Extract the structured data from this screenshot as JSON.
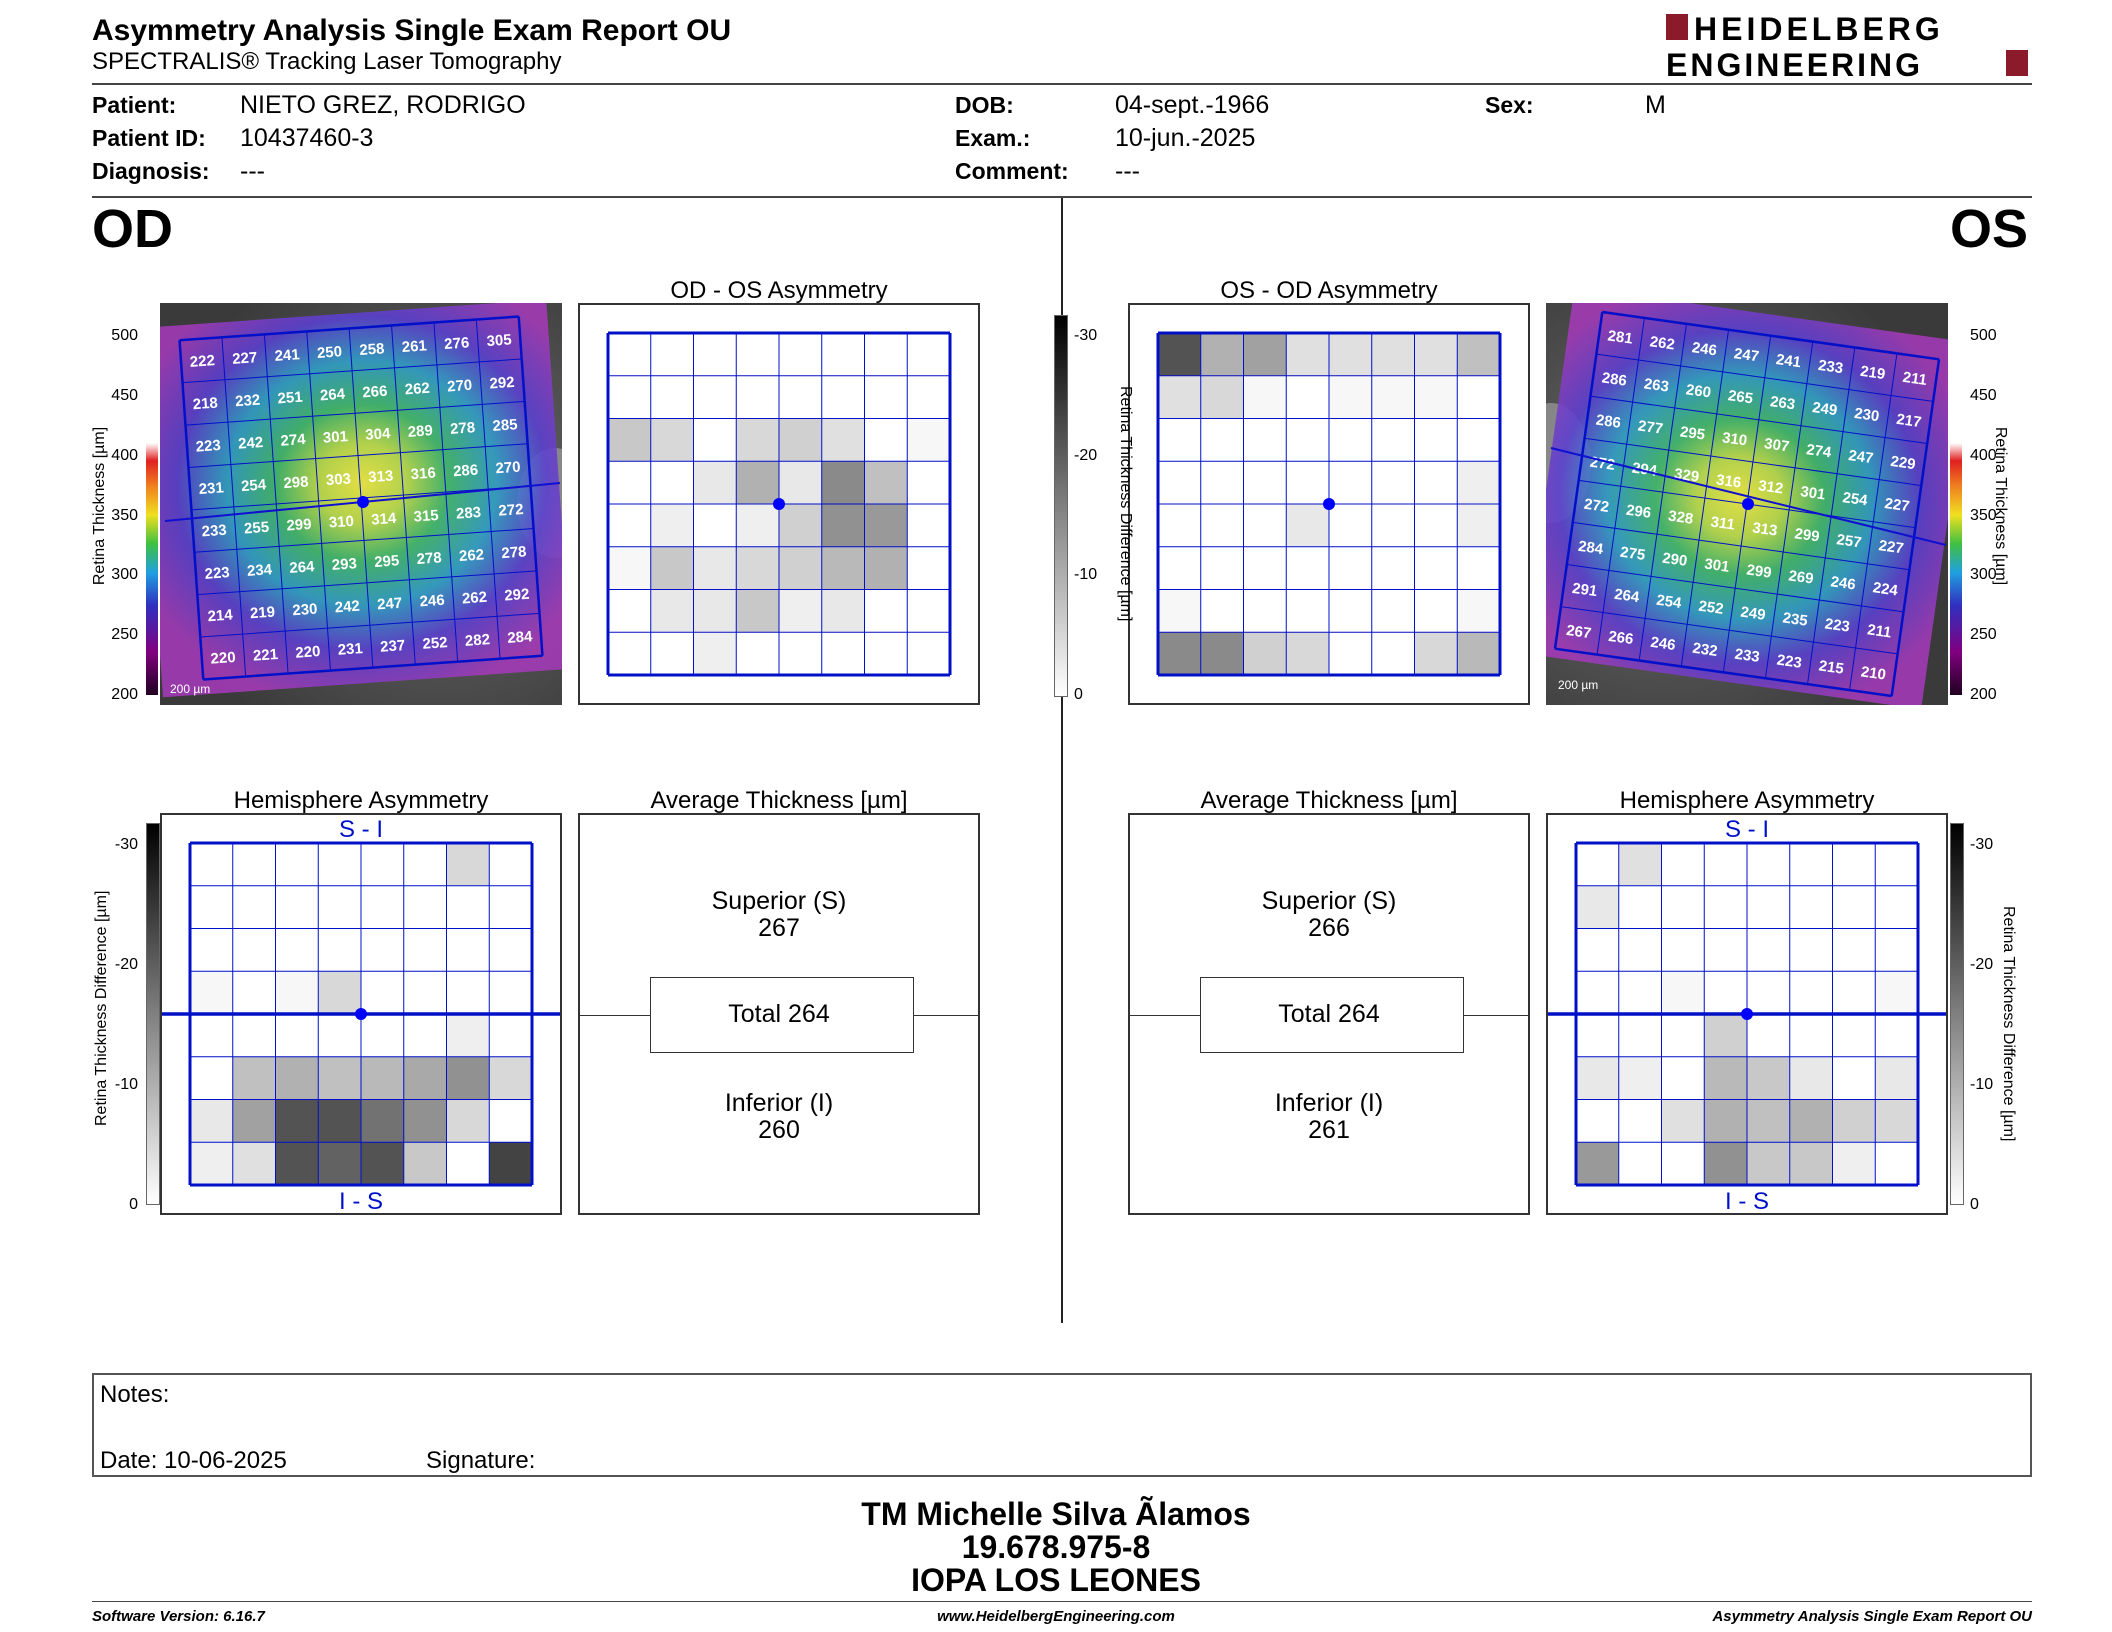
{
  "header": {
    "title": "Asymmetry Analysis Single Exam Report OU",
    "subtitle": "SPECTRALIS® Tracking Laser Tomography",
    "logo_line1": "HEIDELBERG",
    "logo_line2": "ENGINEERING",
    "brand_color": "#8b1a2b"
  },
  "patient": {
    "patient_label": "Patient:",
    "patient_value": "NIETO GREZ, RODRIGO",
    "id_label": "Patient ID:",
    "id_value": "10437460-3",
    "diagnosis_label": "Diagnosis:",
    "diagnosis_value": "---",
    "dob_label": "DOB:",
    "dob_value": "04-sept.-1966",
    "exam_label": "Exam.:",
    "exam_value": "10-jun.-2025",
    "comment_label": "Comment:",
    "comment_value": "---",
    "sex_label": "Sex:",
    "sex_value": "M"
  },
  "od": {
    "eye_label": "OD",
    "asym_title": "OD - OS Asymmetry",
    "hemi_title": "Hemisphere Asymmetry",
    "avg_title": "Average Thickness [µm]",
    "superior_label": "Superior (S)",
    "superior_value": "267",
    "total_label": "Total 264",
    "inferior_label": "Inferior (I)",
    "inferior_value": "260",
    "hemi_top": "S - I",
    "hemi_bottom": "I - S",
    "scale_label": "200 µm",
    "thickness_grid": [
      [
        222,
        227,
        241,
        250,
        258,
        261,
        276,
        305
      ],
      [
        218,
        232,
        251,
        264,
        266,
        262,
        270,
        292
      ],
      [
        223,
        242,
        274,
        301,
        304,
        289,
        278,
        285
      ],
      [
        231,
        254,
        298,
        303,
        313,
        316,
        286,
        270
      ],
      [
        233,
        255,
        299,
        310,
        314,
        315,
        283,
        272
      ],
      [
        223,
        234,
        264,
        293,
        295,
        278,
        262,
        278
      ],
      [
        214,
        219,
        230,
        242,
        247,
        246,
        262,
        292
      ],
      [
        220,
        221,
        220,
        231,
        237,
        252,
        282,
        284
      ]
    ],
    "asym_grid": [
      [
        0,
        0,
        0,
        0,
        0,
        0,
        0,
        0
      ],
      [
        0,
        0,
        0,
        0,
        0,
        0,
        0,
        0
      ],
      [
        7,
        5,
        0,
        5,
        6,
        4,
        0,
        1
      ],
      [
        0,
        0,
        3,
        10,
        3,
        15,
        8,
        0
      ],
      [
        0,
        2,
        0,
        2,
        6,
        14,
        13,
        0
      ],
      [
        1,
        7,
        3,
        5,
        6,
        9,
        10,
        0
      ],
      [
        0,
        3,
        3,
        7,
        2,
        3,
        0,
        0
      ],
      [
        0,
        0,
        2,
        0,
        0,
        0,
        0,
        0
      ]
    ],
    "hemi_grid": [
      [
        0,
        0,
        0,
        0,
        0,
        0,
        5,
        0
      ],
      [
        0,
        0,
        0,
        0,
        0,
        0,
        0,
        0
      ],
      [
        0,
        0,
        0,
        0,
        0,
        0,
        0,
        0
      ],
      [
        1,
        0,
        1,
        5,
        0,
        0,
        0,
        0
      ],
      [
        0,
        0,
        0,
        0,
        0,
        0,
        2,
        0
      ],
      [
        0,
        8,
        10,
        8,
        9,
        11,
        14,
        5
      ],
      [
        3,
        12,
        22,
        22,
        18,
        14,
        5,
        0
      ],
      [
        2,
        4,
        22,
        20,
        22,
        7,
        0,
        24
      ]
    ]
  },
  "os": {
    "eye_label": "OS",
    "asym_title": "OS - OD Asymmetry",
    "hemi_title": "Hemisphere Asymmetry",
    "avg_title": "Average Thickness [µm]",
    "superior_label": "Superior (S)",
    "superior_value": "266",
    "total_label": "Total 264",
    "inferior_label": "Inferior (I)",
    "inferior_value": "261",
    "hemi_top": "S - I",
    "hemi_bottom": "I - S",
    "scale_label": "200 µm",
    "thickness_grid": [
      [
        281,
        262,
        246,
        247,
        241,
        233,
        219,
        211
      ],
      [
        286,
        263,
        260,
        265,
        263,
        249,
        230,
        217
      ],
      [
        286,
        277,
        295,
        310,
        307,
        274,
        247,
        229
      ],
      [
        272,
        294,
        329,
        316,
        312,
        301,
        254,
        227
      ],
      [
        272,
        296,
        328,
        311,
        313,
        299,
        257,
        227
      ],
      [
        284,
        275,
        290,
        301,
        299,
        269,
        246,
        224
      ],
      [
        291,
        264,
        254,
        252,
        249,
        235,
        223,
        211
      ],
      [
        267,
        266,
        246,
        232,
        233,
        223,
        215,
        210
      ]
    ],
    "asym_grid": [
      [
        22,
        10,
        12,
        4,
        4,
        4,
        4,
        8
      ],
      [
        4,
        5,
        1,
        0,
        1,
        1,
        1,
        0
      ],
      [
        0,
        0,
        0,
        0,
        0,
        0,
        0,
        0
      ],
      [
        0,
        0,
        0,
        0,
        0,
        0,
        0,
        2
      ],
      [
        0,
        0,
        0,
        3,
        0,
        0,
        0,
        2
      ],
      [
        0,
        0,
        0,
        0,
        0,
        0,
        0,
        0
      ],
      [
        1,
        0,
        0,
        0,
        0,
        0,
        0,
        1
      ],
      [
        15,
        15,
        6,
        5,
        0,
        0,
        5,
        9
      ]
    ],
    "hemi_grid": [
      [
        0,
        4,
        0,
        0,
        0,
        0,
        0,
        0
      ],
      [
        3,
        0,
        0,
        0,
        0,
        0,
        0,
        0
      ],
      [
        0,
        0,
        0,
        0,
        0,
        0,
        0,
        0
      ],
      [
        0,
        0,
        1,
        0,
        0,
        0,
        0,
        1
      ],
      [
        0,
        0,
        0,
        6,
        0,
        0,
        0,
        0
      ],
      [
        3,
        2,
        0,
        9,
        7,
        3,
        0,
        3
      ],
      [
        0,
        0,
        4,
        10,
        8,
        10,
        6,
        5
      ],
      [
        13,
        0,
        0,
        14,
        7,
        7,
        2,
        0
      ]
    ]
  },
  "axes": {
    "thickness_ticks": [
      "500",
      "450",
      "400",
      "350",
      "300",
      "250",
      "200"
    ],
    "thickness_axis_label": "Retina  Thickness [µm]",
    "diff_ticks": [
      "-30",
      "-20",
      "-10",
      "0"
    ],
    "diff_axis_label": "Retina Thickness Difference [µm]"
  },
  "notes": {
    "notes_label": "Notes:",
    "date_label": "Date: 10-06-2025",
    "signature_label": "Signature:"
  },
  "signer": {
    "name": "TM Michelle Silva Ãlamos",
    "rut": "19.678.975-8",
    "place": "IOPA LOS LEONES"
  },
  "footer": {
    "version": "Software Version: 6.16.7",
    "website": "www.HeidelbergEngineering.com",
    "report": "Asymmetry Analysis Single Exam Report OU"
  },
  "colors": {
    "grid_blue": "#0010c8",
    "fovea_dot": "#0000ff"
  }
}
